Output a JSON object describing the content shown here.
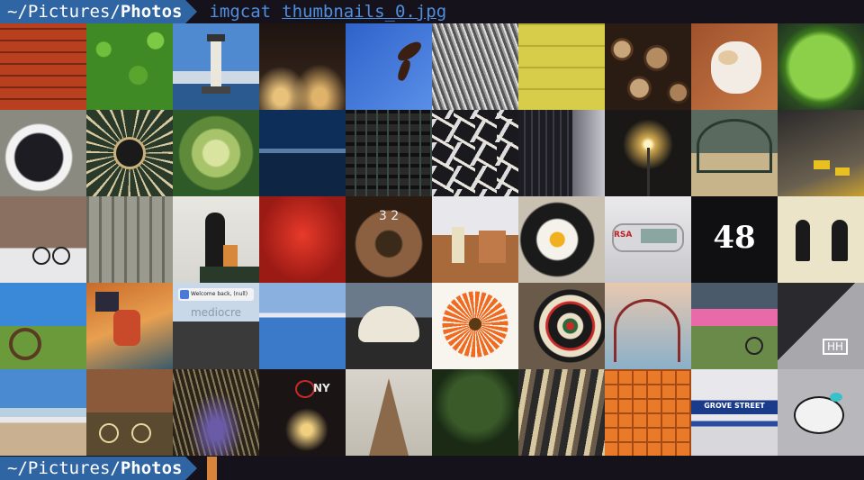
{
  "prompt_top": {
    "path_prefix": "~/Pictures/",
    "path_current": "Photos",
    "command": "imgcat",
    "argument": "thumbnails_0.jpg"
  },
  "prompt_bottom": {
    "path_prefix": "~/Pictures/",
    "path_current": "Photos"
  },
  "thumbnail_texts": {
    "welcome": "Welcome back, (null)",
    "mediocre": "mediocre",
    "number": "48",
    "street": "GROVE STREET",
    "sign_letters": "HH",
    "dial_digits": "3 2",
    "rsa": "RSA",
    "ny": "NY"
  },
  "colors": {
    "prompt_bg": "#2f65a3",
    "command_text": "#4f8fe0",
    "cursor": "#d8843a",
    "terminal_bg": "#16121c"
  }
}
